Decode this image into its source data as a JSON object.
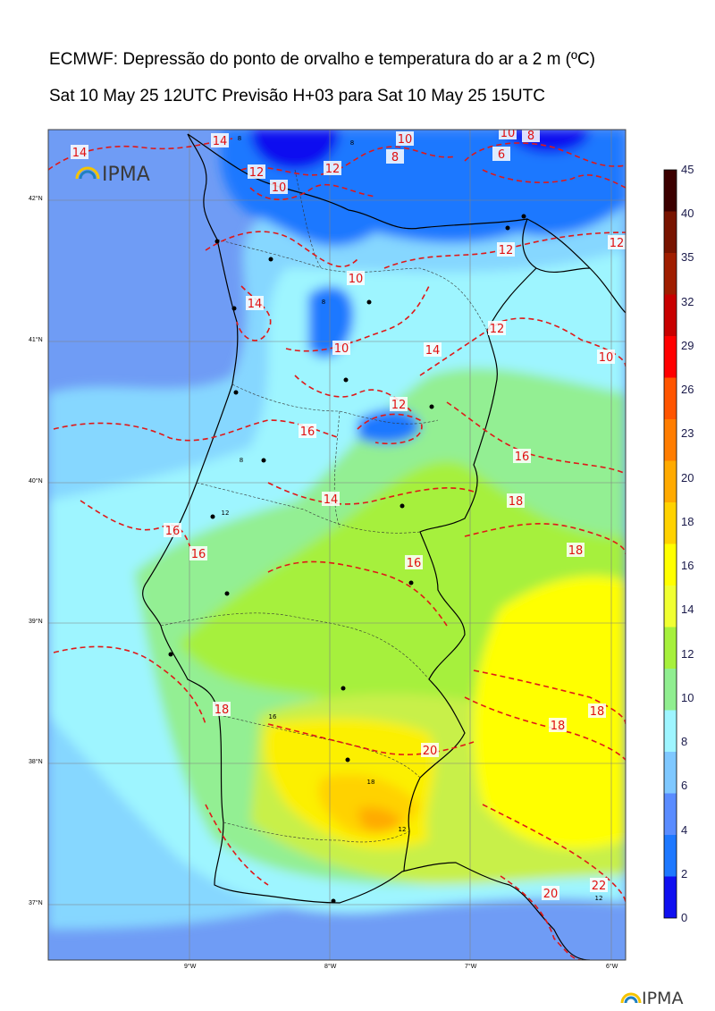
{
  "title": "ECMWF: Depressão do ponto de orvalho e temperatura do ar a 2 m (ºC)",
  "subtitle": "Sat 10 May 25 12UTC Previsão H+03 para Sat 10 May 25 15UTC",
  "logo_map": "IPMA",
  "logo_footer": "IPMA",
  "lat_ticks": [
    "42°N",
    "41°N",
    "40°N",
    "39°N",
    "38°N",
    "37°N"
  ],
  "lon_ticks": [
    "9°W",
    "8°W",
    "7°W",
    "6°W"
  ],
  "colorbar": {
    "labels": [
      "0",
      "2",
      "4",
      "6",
      "8",
      "10",
      "12",
      "14",
      "16",
      "18",
      "20",
      "23",
      "26",
      "29",
      "32",
      "35",
      "40",
      "45"
    ],
    "colors": [
      "#1010f0",
      "#1e78ff",
      "#5a8cff",
      "#7fc8ff",
      "#9ef5ff",
      "#90ee90",
      "#a6f03c",
      "#f0ff32",
      "#ffff00",
      "#ffd200",
      "#ffaa00",
      "#ff7d00",
      "#ff5500",
      "#ff0000",
      "#c80000",
      "#a01e00",
      "#781400",
      "#3c0000"
    ]
  },
  "contour_labels": [
    "14",
    "14",
    "12",
    "12",
    "10",
    "10",
    "8",
    "8",
    "6",
    "10",
    "12",
    "14",
    "10",
    "12",
    "14",
    "10",
    "12",
    "10",
    "16",
    "12",
    "16",
    "16",
    "16",
    "14",
    "18",
    "18",
    "16",
    "18",
    "18",
    "20",
    "18",
    "20",
    "22"
  ],
  "small_labels": [
    "8",
    "8",
    "8",
    "8",
    "12",
    "16",
    "18",
    "12",
    "12"
  ]
}
